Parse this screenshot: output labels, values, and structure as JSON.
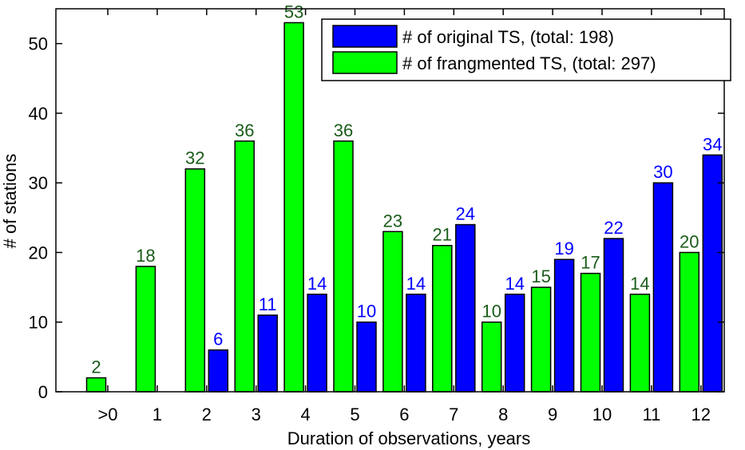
{
  "chart_data": {
    "type": "bar",
    "categories": [
      ">0",
      "1",
      "2",
      "3",
      "4",
      "5",
      "6",
      "7",
      "8",
      "9",
      "10",
      "11",
      "12"
    ],
    "series": [
      {
        "name": "# of frangmented TS, (total: 297)",
        "color": "#00ff00",
        "label_color": "#1a5c1a",
        "values": [
          2,
          18,
          32,
          36,
          53,
          36,
          23,
          21,
          10,
          15,
          17,
          14,
          20
        ]
      },
      {
        "name": "# of original TS, (total: 198)",
        "color": "#0000ff",
        "label_color": "#0000ff",
        "values": [
          0,
          0,
          6,
          11,
          14,
          10,
          14,
          24,
          14,
          19,
          22,
          30,
          34
        ]
      }
    ],
    "xlabel": "Duration of observations, years",
    "ylabel": "# of stations",
    "ylim": [
      0,
      55
    ],
    "yticks": [
      0,
      10,
      20,
      30,
      40,
      50
    ],
    "grid": false,
    "legend_position": "top-right",
    "legend_order": [
      1,
      0
    ]
  }
}
